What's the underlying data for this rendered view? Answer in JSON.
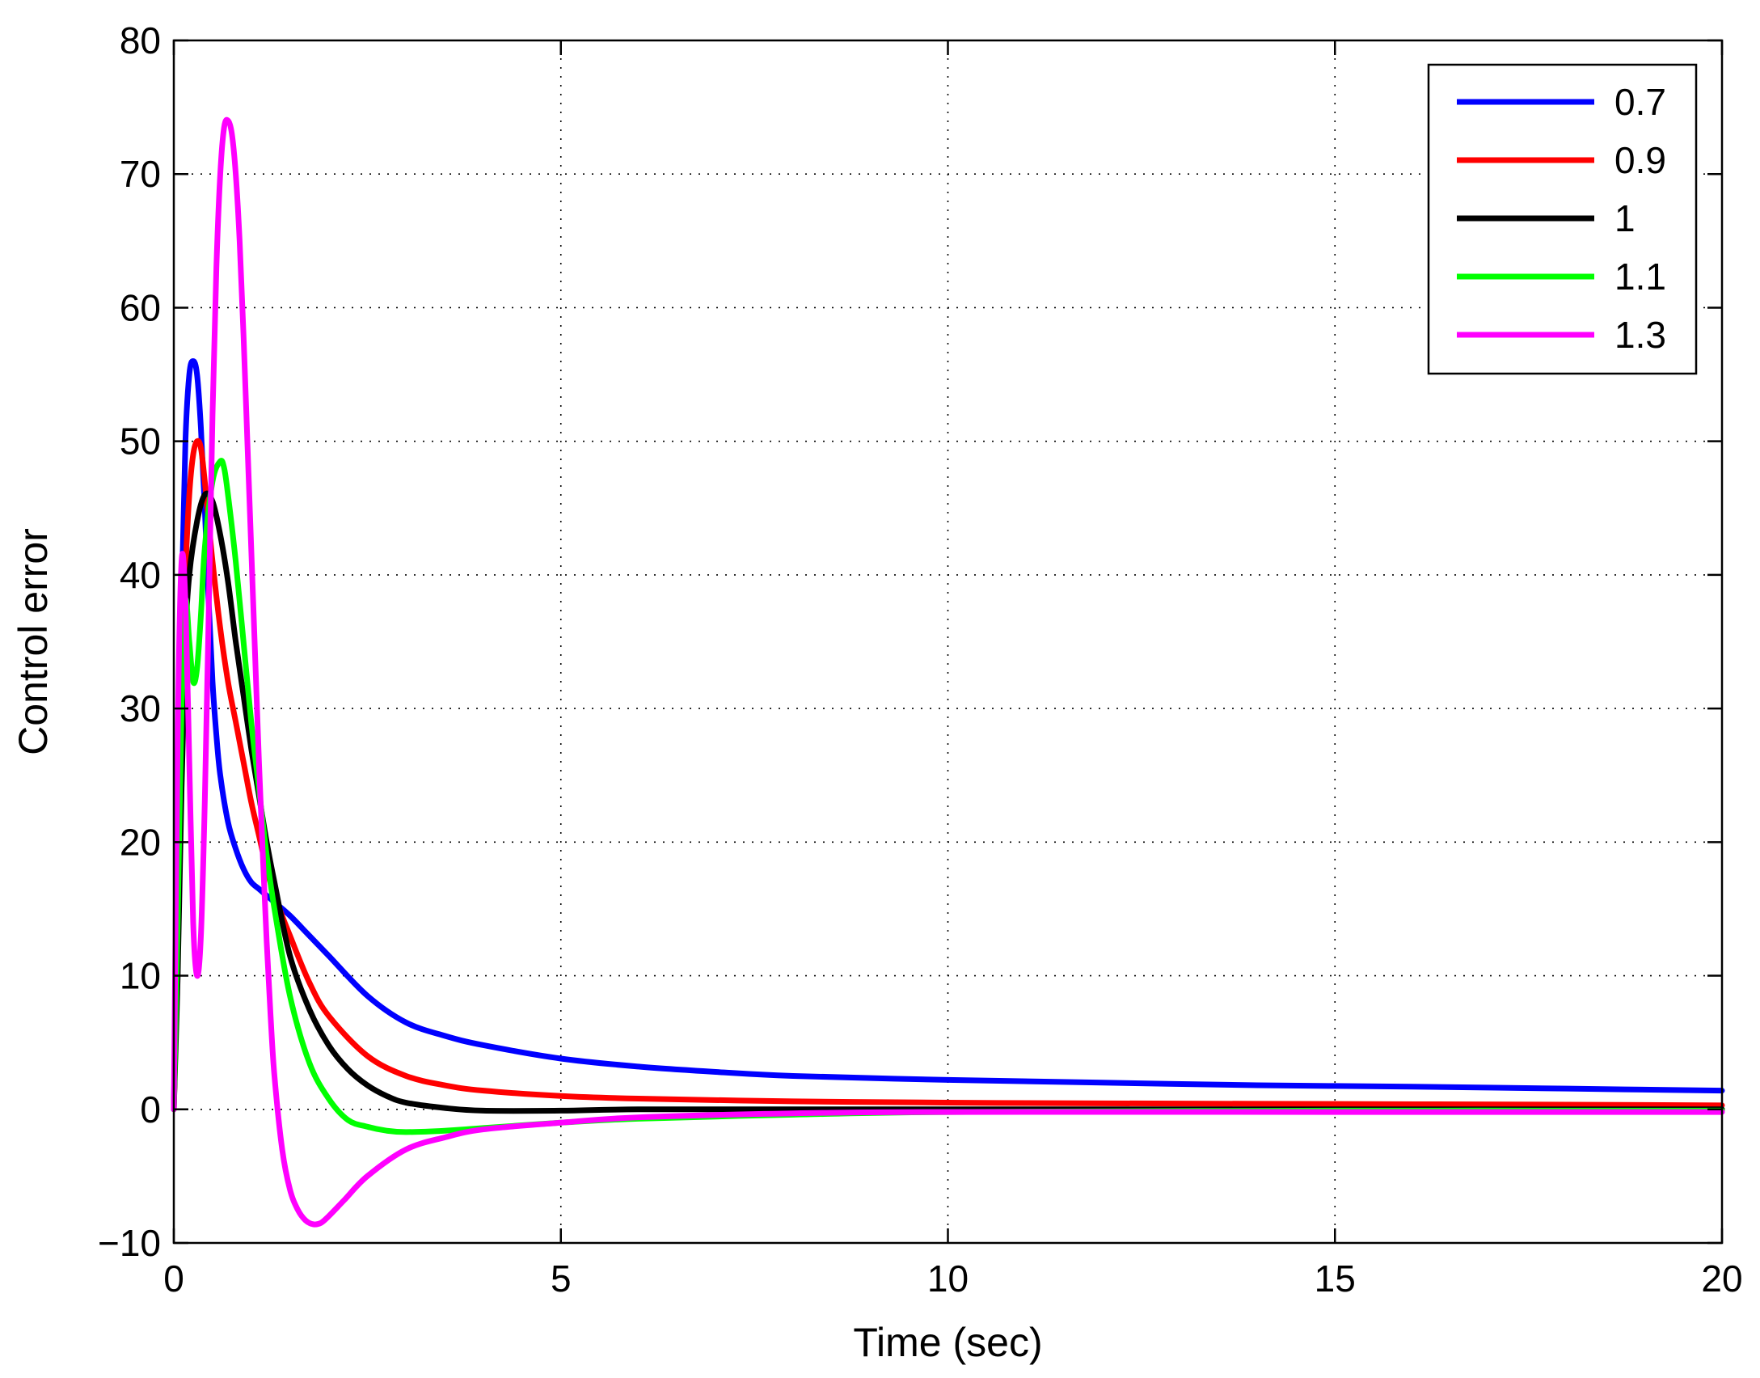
{
  "chart_data": {
    "type": "line",
    "title": "",
    "xlabel": "Time (sec)",
    "ylabel": "Control error",
    "xlim": [
      0,
      20
    ],
    "ylim": [
      -10,
      80
    ],
    "xticks": [
      0,
      5,
      10,
      15,
      20
    ],
    "yticks": [
      -10,
      0,
      10,
      20,
      30,
      40,
      50,
      60,
      70,
      80
    ],
    "xtick_labels": [
      "0",
      "5",
      "10",
      "15",
      "20"
    ],
    "ytick_labels": [
      "−10",
      "0",
      "10",
      "20",
      "30",
      "40",
      "50",
      "60",
      "70",
      "80"
    ],
    "grid": true,
    "legend_position": "top-right",
    "series": [
      {
        "name": "0.7",
        "color": "#0000ff",
        "x": [
          0,
          0.05,
          0.1,
          0.15,
          0.2,
          0.25,
          0.3,
          0.35,
          0.4,
          0.45,
          0.5,
          0.55,
          0.6,
          0.7,
          0.8,
          0.9,
          1.0,
          1.1,
          1.2,
          1.3,
          1.5,
          1.75,
          2.0,
          2.5,
          3.0,
          3.5,
          4.0,
          5.0,
          6.0,
          7.0,
          8.0,
          10.0,
          12.0,
          14.0,
          16.0,
          18.0,
          20.0
        ],
        "y": [
          0,
          18,
          38,
          50,
          55,
          56,
          55,
          51,
          45,
          38,
          32,
          28,
          25,
          21.5,
          19.5,
          18,
          17,
          16.5,
          16,
          15.5,
          14.5,
          13,
          11.5,
          8.5,
          6.5,
          5.5,
          4.8,
          3.8,
          3.2,
          2.8,
          2.5,
          2.2,
          2.0,
          1.8,
          1.7,
          1.55,
          1.4
        ]
      },
      {
        "name": "0.9",
        "color": "#ff0000",
        "x": [
          0,
          0.05,
          0.1,
          0.15,
          0.2,
          0.25,
          0.3,
          0.35,
          0.4,
          0.45,
          0.5,
          0.6,
          0.7,
          0.8,
          0.9,
          1.0,
          1.1,
          1.2,
          1.3,
          1.5,
          1.75,
          2.0,
          2.5,
          3.0,
          3.5,
          4.0,
          5.0,
          6.0,
          8.0,
          10.0,
          12.0,
          15.0,
          18.0,
          20.0
        ],
        "y": [
          0,
          12,
          28,
          40,
          46,
          49,
          50,
          49.5,
          47,
          44,
          41,
          36,
          32,
          29,
          26,
          23,
          20.5,
          18,
          16,
          13,
          9.5,
          7,
          4,
          2.5,
          1.8,
          1.4,
          1.0,
          0.8,
          0.6,
          0.5,
          0.45,
          0.4,
          0.35,
          0.3
        ]
      },
      {
        "name": "1",
        "color": "#000000",
        "x": [
          0,
          0.05,
          0.1,
          0.15,
          0.2,
          0.3,
          0.4,
          0.5,
          0.6,
          0.7,
          0.8,
          0.9,
          1.0,
          1.1,
          1.2,
          1.3,
          1.5,
          1.75,
          2.0,
          2.25,
          2.5,
          2.75,
          3.0,
          3.5,
          4.0,
          5.0,
          6.0,
          8.0,
          10.0,
          15.0,
          20.0
        ],
        "y": [
          0,
          10,
          24,
          35,
          40,
          44,
          46,
          45.5,
          43,
          39.5,
          35,
          31,
          27,
          23.5,
          20,
          17,
          11.5,
          7.5,
          4.8,
          3.0,
          1.8,
          1.0,
          0.5,
          0.1,
          -0.1,
          -0.1,
          0,
          0,
          0,
          0,
          0
        ]
      },
      {
        "name": "1.1",
        "color": "#00ff00",
        "x": [
          0,
          0.05,
          0.1,
          0.15,
          0.2,
          0.25,
          0.3,
          0.35,
          0.4,
          0.5,
          0.6,
          0.65,
          0.7,
          0.8,
          0.9,
          1.0,
          1.1,
          1.2,
          1.3,
          1.5,
          1.75,
          2.0,
          2.25,
          2.5,
          2.75,
          3.0,
          3.5,
          4.0,
          5.0,
          6.0,
          8.0,
          10.0,
          15.0,
          20.0
        ],
        "y": [
          0,
          14,
          30,
          38,
          35,
          32,
          33,
          37,
          42,
          47,
          48.5,
          48,
          46,
          41,
          35,
          29,
          24,
          19,
          15,
          8.5,
          3.5,
          0.8,
          -0.8,
          -1.3,
          -1.6,
          -1.7,
          -1.6,
          -1.4,
          -1.0,
          -0.7,
          -0.4,
          -0.2,
          -0.1,
          -0.1
        ]
      },
      {
        "name": "1.3",
        "color": "#ff00ff",
        "x": [
          0,
          0.05,
          0.1,
          0.15,
          0.2,
          0.25,
          0.3,
          0.35,
          0.4,
          0.45,
          0.5,
          0.55,
          0.6,
          0.65,
          0.7,
          0.75,
          0.8,
          0.85,
          0.9,
          0.95,
          1.0,
          1.05,
          1.1,
          1.15,
          1.2,
          1.25,
          1.3,
          1.4,
          1.5,
          1.6,
          1.7,
          1.8,
          1.9,
          2.0,
          2.2,
          2.5,
          3.0,
          3.5,
          4.0,
          5.0,
          6.0,
          8.0,
          10.0,
          15.0,
          20.0
        ],
        "y": [
          0,
          28,
          41,
          38,
          26,
          14,
          10,
          13,
          23,
          37,
          52,
          63,
          70,
          73.5,
          74,
          73,
          70,
          65,
          58,
          50,
          42,
          34,
          26,
          19,
          12.5,
          7,
          2.5,
          -3,
          -6,
          -7.5,
          -8.3,
          -8.6,
          -8.5,
          -8.0,
          -6.8,
          -5.0,
          -3.0,
          -2.1,
          -1.5,
          -1.0,
          -0.6,
          -0.3,
          -0.2,
          -0.2,
          -0.2
        ]
      }
    ]
  }
}
